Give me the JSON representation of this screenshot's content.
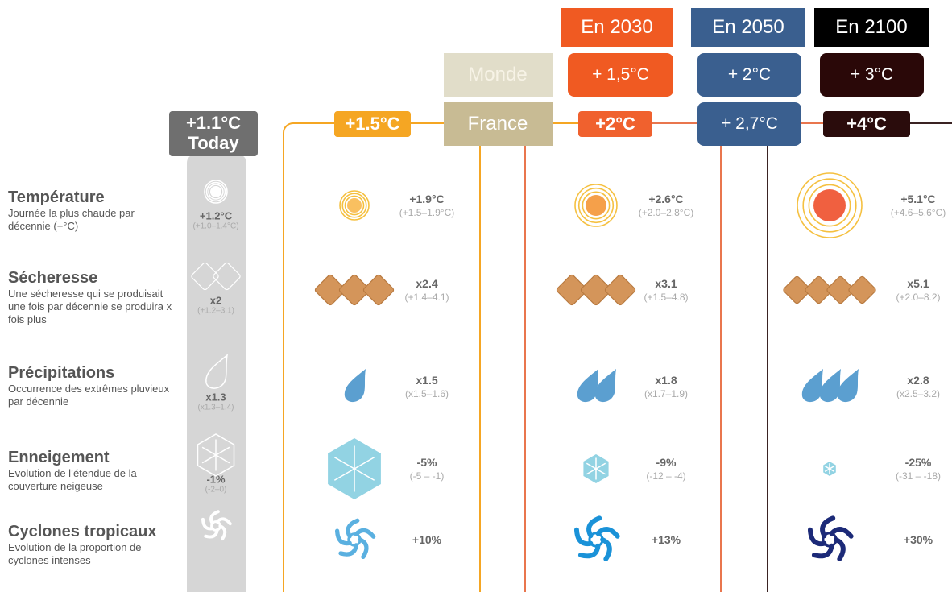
{
  "scenarios": [
    {
      "year": "En 2030",
      "world": "+ 1,5°C"
    },
    {
      "year": "En 2050",
      "world": "+ 2°C",
      "france": "+ 2,7°C"
    },
    {
      "year": "En 2100",
      "world": "+ 3°C"
    }
  ],
  "row_labels": {
    "world": "Monde",
    "france": "France"
  },
  "indicators": [
    {
      "title": "Température",
      "description": "Journée la plus chaude par décennie (+°C)"
    },
    {
      "title": "Sécheresse",
      "description": "Une sécheresse qui se produisait une fois par décennie se produira x fois plus"
    },
    {
      "title": "Précipitations",
      "description": "Occurrence des extrêmes pluvieux par décennie"
    },
    {
      "title": "Enneigement",
      "description": "Evolution de l’étendue de la couverture neigeuse"
    },
    {
      "title": "Cyclones tropicaux",
      "description": "Evolution de la proportion de cyclones intenses"
    }
  ],
  "levels": [
    {
      "label": [
        "+1.1°C",
        "Today"
      ],
      "values": [
        {
          "main": "+1.2°C",
          "range": "(+1.0–1.4°C)"
        },
        {
          "main": "x2",
          "range": "(+1.2–3.1)"
        },
        {
          "main": "x1.3",
          "range": "(x1.3–1.4)"
        },
        {
          "main": "-1%",
          "range": "(-2–0)"
        }
      ]
    },
    {
      "label": [
        "+1.5°C"
      ],
      "values": [
        {
          "main": "+1.9°C",
          "range": "(+1.5–1.9°C)"
        },
        {
          "main": "x2.4",
          "range": "(+1.4–4.1)"
        },
        {
          "main": "x1.5",
          "range": "(x1.5–1.6)"
        },
        {
          "main": "-5%",
          "range": "(-5 – -1)"
        },
        {
          "main": "+10%"
        }
      ]
    },
    {
      "label": [
        "+2°C"
      ],
      "values": [
        {
          "main": "+2.6°C",
          "range": "(+2.0–2.8°C)"
        },
        {
          "main": "x3.1",
          "range": "(+1.5–4.8)"
        },
        {
          "main": "x1.8",
          "range": "(x1.7–1.9)"
        },
        {
          "main": "-9%",
          "range": "(-12 – -4)"
        },
        {
          "main": "+13%"
        }
      ]
    },
    {
      "label": [
        "+4°C"
      ],
      "values": [
        {
          "main": "+5.1°C",
          "range": "(+4.6–5.6°C)"
        },
        {
          "main": "x5.1",
          "range": "(+2.0–8.2)"
        },
        {
          "main": "x2.8",
          "range": "(x2.5–3.2)"
        },
        {
          "main": "-25%",
          "range": "(-31 – -18)"
        },
        {
          "main": "+30%"
        }
      ]
    }
  ]
}
